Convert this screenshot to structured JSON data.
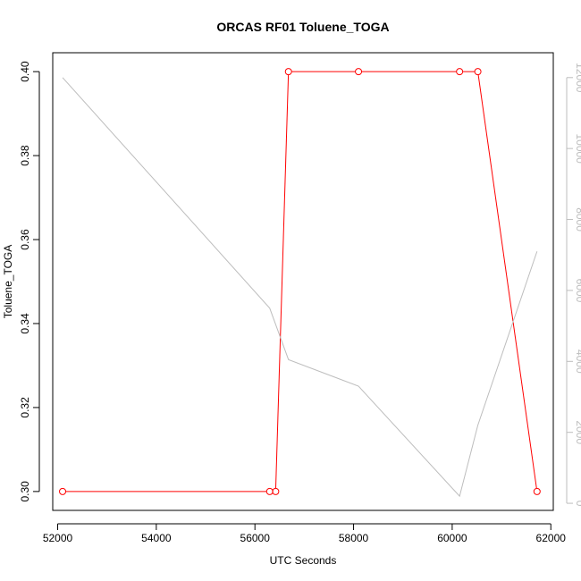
{
  "chart_data": {
    "type": "line",
    "title": "ORCAS RF01 Toluene_TOGA",
    "xlabel": "UTC Seconds",
    "ylabel": "Toluene_TOGA",
    "xlim": [
      51900,
      62050
    ],
    "ylim": [
      0.2955,
      0.4045
    ],
    "y2lim": [
      -200,
      12700
    ],
    "x_ticks": [
      52000,
      54000,
      56000,
      58000,
      60000,
      62000
    ],
    "x_tick_labels": [
      "52000",
      "54000",
      "56000",
      "58000",
      "60000",
      "62000"
    ],
    "y_ticks": [
      0.3,
      0.32,
      0.34,
      0.36,
      0.38,
      0.4
    ],
    "y_tick_labels": [
      "0.30",
      "0.32",
      "0.34",
      "0.36",
      "0.38",
      "0.40"
    ],
    "y2_ticks": [
      0,
      2000,
      4000,
      6000,
      8000,
      10000,
      12000
    ],
    "y2_tick_labels": [
      "0",
      "2000",
      "4000",
      "6000",
      "8000",
      "10000",
      "12000"
    ],
    "grid": false,
    "series": [
      {
        "axis": "left",
        "color": "#ff0000",
        "marker": "open-circle",
        "x": [
          52100,
          56300,
          56420,
          56680,
          58100,
          60150,
          60520,
          61720
        ],
        "y": [
          0.3,
          0.3,
          0.3,
          0.4,
          0.4,
          0.4,
          0.4,
          0.3
        ]
      },
      {
        "axis": "right",
        "color": "#bdbdbd",
        "marker": "none",
        "x": [
          52100,
          56300,
          56680,
          58100,
          60150,
          60520,
          61720
        ],
        "y": [
          12000,
          5500,
          4050,
          3300,
          200,
          2200,
          7100
        ]
      }
    ]
  }
}
